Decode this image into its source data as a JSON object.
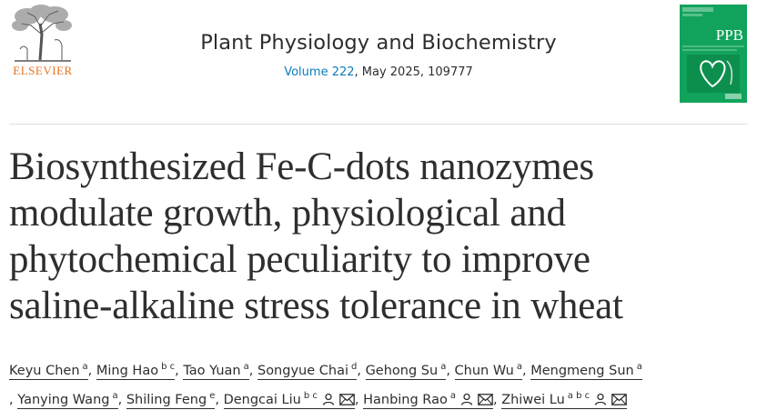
{
  "header": {
    "publisher": "ELSEVIER",
    "journal_title": "Plant Physiology and Biochemistry",
    "volume_label": "Volume 222",
    "issue_info": ", May 2025, 109777",
    "cover_title": "PPB"
  },
  "article": {
    "title_lines": [
      "Biosynthesized Fe-C-dots nanozymes",
      "modulate growth, physiological and",
      "phytochemical peculiarity to improve",
      "saline-alkaline stress tolerance in wheat"
    ]
  },
  "authors": [
    {
      "name": "Keyu Chen",
      "aff": "a",
      "separator": ","
    },
    {
      "name": "Ming Hao",
      "aff": "b c",
      "separator": ","
    },
    {
      "name": "Tao Yuan",
      "aff": "a",
      "separator": ","
    },
    {
      "name": "Songyue Chai",
      "aff": "d",
      "separator": ","
    },
    {
      "name": "Gehong Su",
      "aff": "a",
      "separator": ","
    },
    {
      "name": "Chun Wu",
      "aff": "a",
      "separator": ","
    },
    {
      "name": "Mengmeng Sun",
      "aff": "a",
      "separator": ""
    },
    {
      "name": "Yanying Wang",
      "aff": "a",
      "separator": ","
    },
    {
      "name": "Shiling Feng",
      "aff": "e",
      "separator": ","
    },
    {
      "name": "Dengcai Liu",
      "aff": "b c",
      "separator": ","
    },
    {
      "name": "Hanbing Rao",
      "aff": "a",
      "separator": ","
    },
    {
      "name": "Zhiwei Lu",
      "aff": "a b c",
      "separator": ""
    }
  ],
  "author_line2_prefix": ",",
  "colors": {
    "publisher_orange": "#e9711c",
    "link_blue": "#0c7dbb",
    "cover_green": "#11a35b"
  },
  "icons": [
    "elsevier-tree-logo",
    "person-icon",
    "mail-icon"
  ]
}
